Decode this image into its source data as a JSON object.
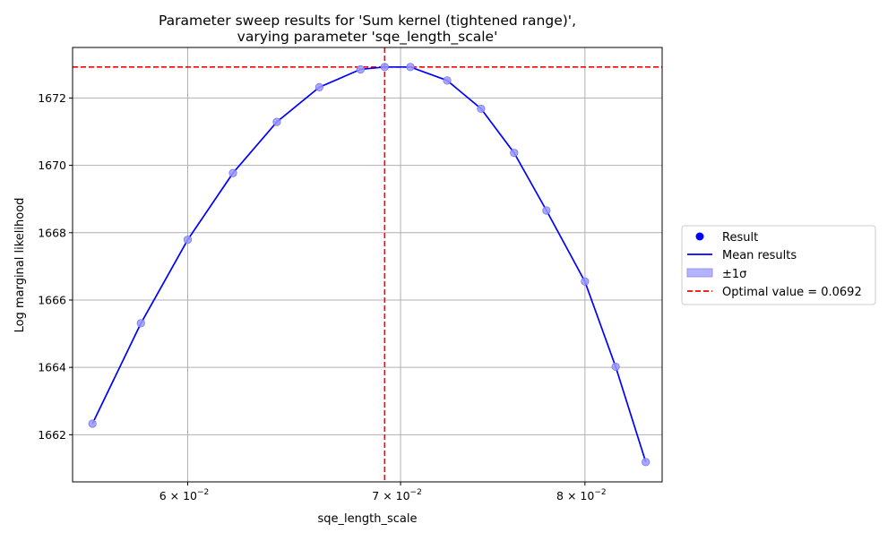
{
  "chart_data": {
    "type": "scatter",
    "title_line1": "Parameter sweep results for 'Sum kernel (tightened range)',",
    "title_line2": "varying parameter 'sqe_length_scale'",
    "xlabel": "sqe_length_scale",
    "ylabel": "Log marginal likelihood",
    "x_scale": "log",
    "xlim": [
      0.0552,
      0.0846
    ],
    "ylim": [
      1660.6,
      1673.5
    ],
    "xticks": [
      {
        "value": 0.06,
        "base": "6 × 10",
        "exp": "−2"
      },
      {
        "value": 0.07,
        "base": "7 × 10",
        "exp": "−2"
      },
      {
        "value": 0.08,
        "base": "8 × 10",
        "exp": "−2"
      }
    ],
    "yticks": [
      {
        "value": 1662,
        "label": "1662"
      },
      {
        "value": 1664,
        "label": "1664"
      },
      {
        "value": 1666,
        "label": "1666"
      },
      {
        "value": 1668,
        "label": "1668"
      },
      {
        "value": 1670,
        "label": "1670"
      },
      {
        "value": 1672,
        "label": "1672"
      }
    ],
    "grid": true,
    "legend_position": "center-right-outside",
    "points": [
      {
        "x": 0.056,
        "y": 1662.33
      },
      {
        "x": 0.058,
        "y": 1665.31
      },
      {
        "x": 0.06,
        "y": 1667.79
      },
      {
        "x": 0.062,
        "y": 1669.77
      },
      {
        "x": 0.064,
        "y": 1671.29
      },
      {
        "x": 0.066,
        "y": 1672.32
      },
      {
        "x": 0.068,
        "y": 1672.85
      },
      {
        "x": 0.0692,
        "y": 1672.92
      },
      {
        "x": 0.0705,
        "y": 1672.92
      },
      {
        "x": 0.0724,
        "y": 1672.52
      },
      {
        "x": 0.0742,
        "y": 1671.68
      },
      {
        "x": 0.076,
        "y": 1670.37
      },
      {
        "x": 0.0778,
        "y": 1668.66
      },
      {
        "x": 0.08,
        "y": 1666.55
      },
      {
        "x": 0.0818,
        "y": 1664.02
      },
      {
        "x": 0.0836,
        "y": 1661.19
      }
    ],
    "optimal": {
      "x": 0.0692,
      "y": 1672.92
    },
    "legend": [
      {
        "kind": "marker",
        "label": "Result"
      },
      {
        "kind": "line",
        "label": "Mean results"
      },
      {
        "kind": "patch",
        "label": "±1σ"
      },
      {
        "kind": "dashed",
        "label": "Optimal value = 0.0692"
      }
    ],
    "colors": {
      "line": "#0000ff",
      "marker_fill": "#9999ff",
      "marker_edge": "#7777ee",
      "optimal": "#ff0000",
      "grid": "#b0b0b0",
      "patch": "#b3b3ff"
    }
  }
}
